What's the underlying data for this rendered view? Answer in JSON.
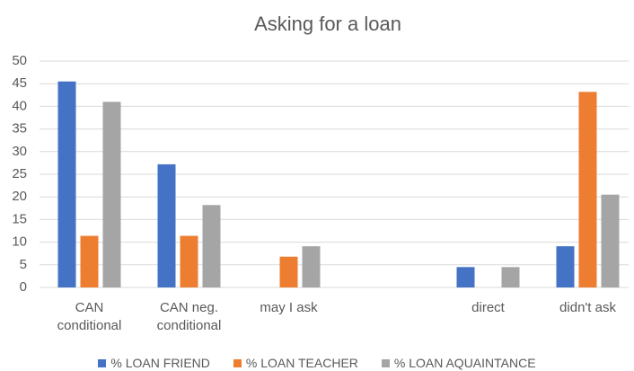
{
  "chart_data": {
    "type": "bar",
    "title": "Asking for a loan",
    "categories": [
      "CAN conditional",
      "CAN neg. conditional",
      "may I ask",
      null,
      "direct",
      "didn't ask"
    ],
    "series": [
      {
        "name": "% LOAN FRIEND",
        "color": "#4472c4",
        "values": [
          45.5,
          27.2,
          0,
          0,
          4.5,
          9.1
        ]
      },
      {
        "name": "% LOAN TEACHER",
        "color": "#ed7d31",
        "values": [
          11.4,
          11.4,
          6.8,
          0,
          0,
          43.2
        ]
      },
      {
        "name": "% LOAN AQUAINTANCE",
        "color": "#a5a5a5",
        "values": [
          41,
          18.2,
          9.1,
          0,
          4.5,
          20.5
        ]
      }
    ],
    "ylim": [
      0,
      50
    ],
    "yticks": [
      0,
      5,
      10,
      15,
      20,
      25,
      30,
      35,
      40,
      45,
      50
    ],
    "grid": true,
    "legend": "bottom"
  }
}
